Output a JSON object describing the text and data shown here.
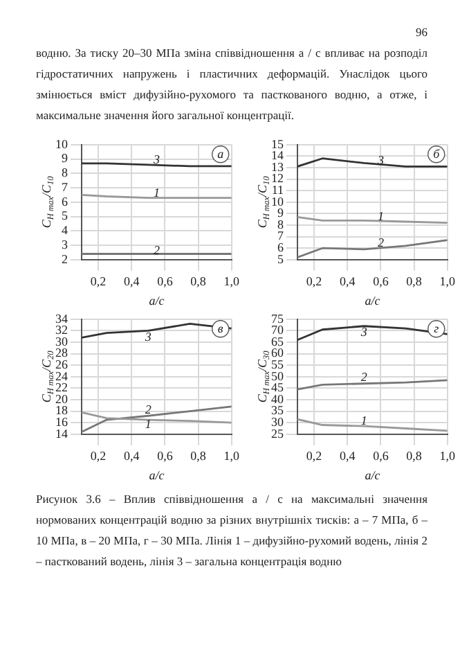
{
  "chart_data": [
    {
      "type": "other",
      "annotations": [
        "96",
        "водню. За тиску 20–30 МПа зміна співвідношення a / c впливає на розподіл гідростатичних напружень і пластичних деформацій. Унаслідок цього змінюється вміст дифузійно-рухомого та пасткованого водню, а отже, і максимальне значення його загальної концентрації."
      ]
    },
    {
      "type": "line",
      "title": "а",
      "xlabel": "a/c",
      "ylabel": "C$_{H max}$/C$_{10}$",
      "x": [
        0.1,
        0.25,
        0.5,
        0.75,
        1.0
      ],
      "xlim": [
        0.1,
        1.0
      ],
      "xticks": [
        {
          "value": 0.2,
          "label": "0,2"
        },
        {
          "value": 0.4,
          "label": "0,4"
        },
        {
          "value": 0.6,
          "label": "0,6"
        },
        {
          "value": 0.8,
          "label": "0,8"
        },
        {
          "value": 1.0,
          "label": "1,0"
        }
      ],
      "ylim": [
        2,
        10
      ],
      "yticks": [
        2,
        3,
        4,
        5,
        6,
        7,
        8,
        9,
        10
      ],
      "grid": true,
      "series": [
        {
          "color": "#333333",
          "values": [
            8.7,
            8.7,
            8.6,
            8.5,
            8.5
          ]
        },
        {
          "color": "#999999",
          "values": [
            6.5,
            6.4,
            6.3,
            6.3,
            6.3
          ]
        },
        {
          "color": "#777777",
          "values": [
            2.4,
            2.4,
            2.4,
            2.4,
            2.4
          ]
        }
      ],
      "annotations": [
        {
          "text": "3",
          "x": 0.55,
          "y": 8.9
        },
        {
          "text": "1",
          "x": 0.55,
          "y": 6.6
        },
        {
          "text": "2",
          "x": 0.55,
          "y": 2.6
        }
      ]
    },
    {
      "type": "line",
      "title": "б",
      "xlabel": "a/c",
      "ylabel": "C$_{H max}$/C$_{10}$",
      "x": [
        0.1,
        0.25,
        0.5,
        0.75,
        1.0
      ],
      "xlim": [
        0.1,
        1.0
      ],
      "xticks": [
        {
          "value": 0.2,
          "label": "0,2"
        },
        {
          "value": 0.4,
          "label": "0,4"
        },
        {
          "value": 0.6,
          "label": "0,6"
        },
        {
          "value": 0.8,
          "label": "0,8"
        },
        {
          "value": 1.0,
          "label": "1,0"
        }
      ],
      "ylim": [
        5,
        15
      ],
      "yticks": [
        5,
        6,
        7,
        8,
        9,
        10,
        11,
        12,
        13,
        14,
        15
      ],
      "grid": true,
      "series": [
        {
          "color": "#333333",
          "values": [
            13.1,
            13.8,
            13.4,
            13.1,
            13.1
          ]
        },
        {
          "color": "#999999",
          "values": [
            8.7,
            8.4,
            8.4,
            8.3,
            8.2
          ]
        },
        {
          "color": "#777777",
          "values": [
            5.2,
            6.0,
            5.9,
            6.2,
            6.7
          ]
        }
      ],
      "annotations": [
        {
          "text": "3",
          "x": 0.6,
          "y": 13.6
        },
        {
          "text": "1",
          "x": 0.6,
          "y": 8.7
        },
        {
          "text": "2",
          "x": 0.6,
          "y": 6.4
        }
      ]
    },
    {
      "type": "line",
      "title": "в",
      "xlabel": "a/c",
      "ylabel": "C$_{H max}$/C$_{20}$",
      "x": [
        0.1,
        0.25,
        0.5,
        0.75,
        1.0
      ],
      "xlim": [
        0.1,
        1.0
      ],
      "xticks": [
        {
          "value": 0.2,
          "label": "0,2"
        },
        {
          "value": 0.4,
          "label": "0,4"
        },
        {
          "value": 0.6,
          "label": "0,6"
        },
        {
          "value": 0.8,
          "label": "0,8"
        },
        {
          "value": 1.0,
          "label": "1,0"
        }
      ],
      "ylim": [
        14,
        34
      ],
      "yticks": [
        14,
        16,
        18,
        20,
        22,
        24,
        26,
        28,
        30,
        32,
        34
      ],
      "grid": true,
      "series": [
        {
          "color": "#333333",
          "values": [
            30.8,
            31.6,
            32.0,
            33.2,
            32.4
          ]
        },
        {
          "color": "#999999",
          "values": [
            17.8,
            16.8,
            16.5,
            16.3,
            16.0
          ]
        },
        {
          "color": "#777777",
          "values": [
            14.4,
            16.5,
            17.2,
            18.0,
            18.8
          ]
        }
      ],
      "annotations": [
        {
          "text": "3",
          "x": 0.5,
          "y": 30.8
        },
        {
          "text": "1",
          "x": 0.5,
          "y": 15.6
        },
        {
          "text": "2",
          "x": 0.5,
          "y": 18.2
        }
      ]
    },
    {
      "type": "line",
      "title": "г",
      "xlabel": "a/c",
      "ylabel": "C$_{H max}$/C$_{30}$",
      "x": [
        0.1,
        0.25,
        0.5,
        0.75,
        1.0
      ],
      "xlim": [
        0.1,
        1.0
      ],
      "xticks": [
        {
          "value": 0.2,
          "label": "0,2"
        },
        {
          "value": 0.4,
          "label": "0,4"
        },
        {
          "value": 0.6,
          "label": "0,6"
        },
        {
          "value": 0.8,
          "label": "0,8"
        },
        {
          "value": 1.0,
          "label": "1,0"
        }
      ],
      "ylim": [
        25,
        75
      ],
      "yticks": [
        25,
        30,
        35,
        40,
        45,
        50,
        55,
        60,
        65,
        70,
        75
      ],
      "grid": true,
      "series": [
        {
          "color": "#333333",
          "values": [
            66,
            70.5,
            72,
            71,
            68.5
          ]
        },
        {
          "color": "#999999",
          "values": [
            31.5,
            29,
            28.5,
            27.5,
            26.5
          ]
        },
        {
          "color": "#777777",
          "values": [
            44.5,
            46.5,
            47,
            47.5,
            48.5
          ]
        }
      ],
      "annotations": [
        {
          "text": "3",
          "x": 0.5,
          "y": 69
        },
        {
          "text": "1",
          "x": 0.5,
          "y": 30.5
        },
        {
          "text": "2",
          "x": 0.5,
          "y": 49.5
        }
      ]
    },
    {
      "type": "other",
      "annotations": [
        "Рисунок 3.6 – Вплив співвідношення a / c на максимальні значення нормованих концентрацій водню за різних внутрішніх тисків: а – 7 МПа, б – 10 МПа, в – 20 МПа, г – 30 МПа. Лінія 1 – дифузійно-рухомий водень, лінія 2 – пасткований водень, лінія 3 – загальна концентрація водню"
      ]
    }
  ]
}
